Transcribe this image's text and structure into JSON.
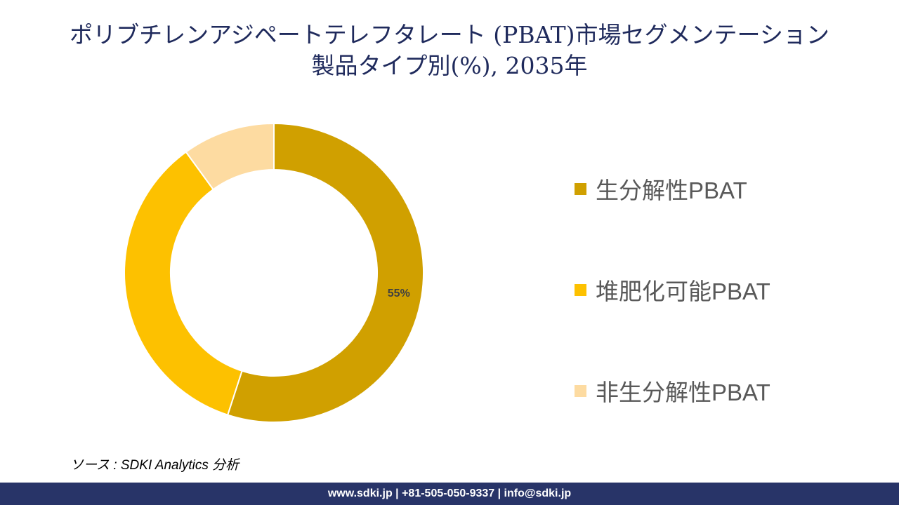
{
  "chart_data": {
    "type": "pie",
    "subtype": "donut",
    "title": "ポリブチレンアジペートテレフタレート (PBAT)市場セグメンテーション\n製品タイプ別(%), 2035年",
    "title_line1": "ポリブチレンアジペートテレフタレート (PBAT)市場セグメンテーション",
    "title_line2": "製品タイプ別(%), 2035年",
    "categories": [
      "生分解性PBAT",
      "堆肥化可能PBAT",
      "非生分解性PBAT"
    ],
    "values": [
      55,
      35,
      10
    ],
    "data_labels": [
      "55%",
      "",
      ""
    ],
    "colors": [
      "#D0A000",
      "#FDC100",
      "#FDDBA1"
    ],
    "legend_position": "right"
  },
  "source": "ソース : SDKI Analytics 分析",
  "footer": "www.sdki.jp | +81-505-050-9337 | info@sdki.jp"
}
